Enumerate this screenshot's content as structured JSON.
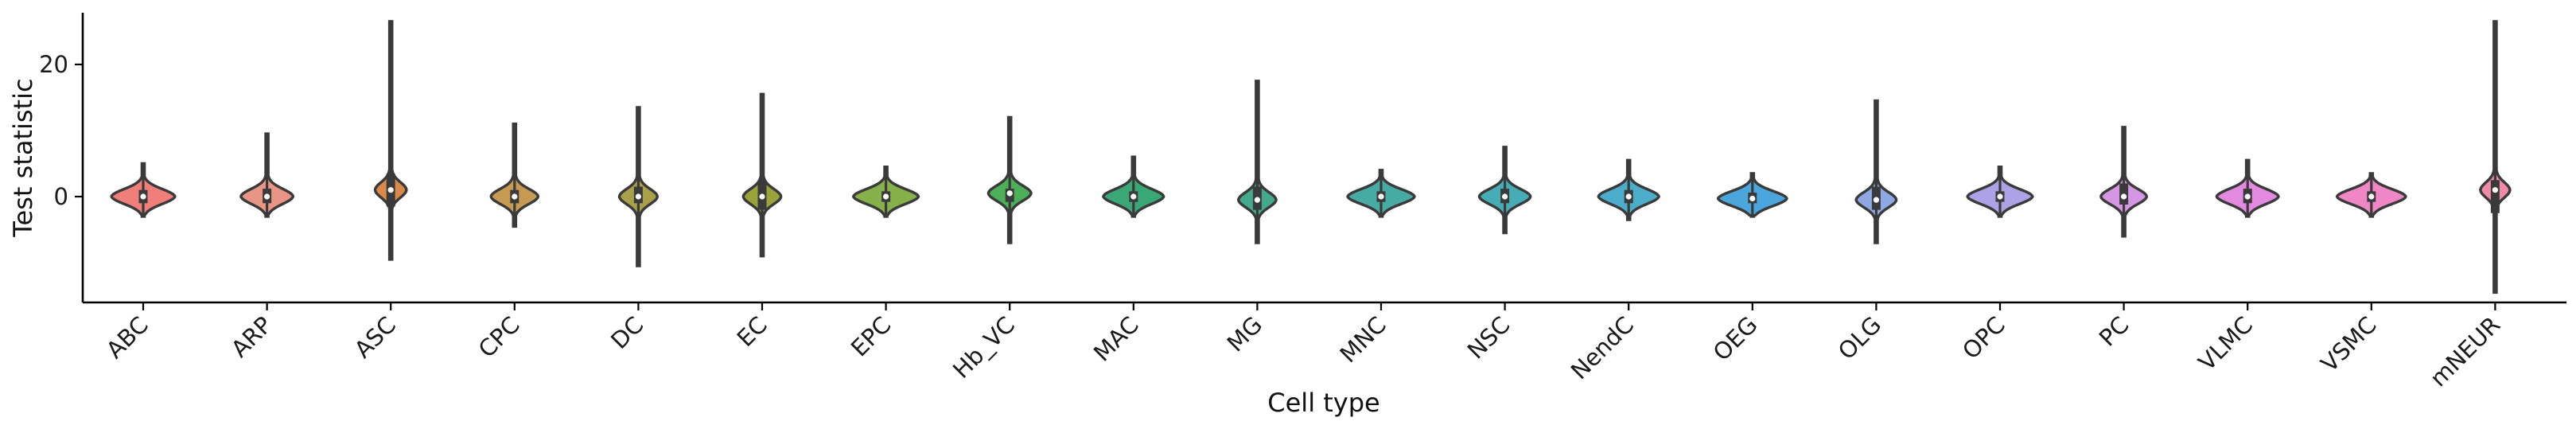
{
  "chart_data": {
    "type": "violin",
    "xlabel": "Cell type",
    "ylabel": "Test statistic",
    "ylim": [
      -10,
      28
    ],
    "yticks": [
      0,
      20
    ],
    "grid": false,
    "categories": [
      "ABC",
      "ARP",
      "ASC",
      "CPC",
      "DC",
      "EC",
      "EPC",
      "Hb_VC",
      "MAC",
      "MG",
      "MNC",
      "NSC",
      "NendC",
      "OEG",
      "OLG",
      "OPC",
      "PC",
      "VLMC",
      "VSMC",
      "mNEUR"
    ],
    "colors": [
      "#f07f7a",
      "#e99585",
      "#d9894a",
      "#c69a53",
      "#a8a04a",
      "#9aa33a",
      "#86b04a",
      "#4daf58",
      "#3aa876",
      "#44a98d",
      "#45aba3",
      "#46adb6",
      "#4badc9",
      "#4aa6dc",
      "#8ea8e4",
      "#ada2e6",
      "#d597e4",
      "#e38ae0",
      "#ef86c6",
      "#f08aa8"
    ],
    "series": [
      {
        "category": "ABC",
        "min": -3.0,
        "max": 5.0,
        "median": 0.0,
        "q1": -1.0,
        "q3": 1.0
      },
      {
        "category": "ARP",
        "min": -3.0,
        "max": 9.5,
        "median": 0.0,
        "q1": -1.0,
        "q3": 1.2
      },
      {
        "category": "ASC",
        "min": -9.5,
        "max": 26.5,
        "median": 1.0,
        "q1": -1.5,
        "q3": 3.5
      },
      {
        "category": "CPC",
        "min": -4.5,
        "max": 11.0,
        "median": 0.0,
        "q1": -1.0,
        "q3": 1.0
      },
      {
        "category": "DC",
        "min": -10.5,
        "max": 13.5,
        "median": 0.0,
        "q1": -1.0,
        "q3": 1.5
      },
      {
        "category": "EC",
        "min": -9.0,
        "max": 15.5,
        "median": 0.0,
        "q1": -2.0,
        "q3": 2.5
      },
      {
        "category": "EPC",
        "min": -3.0,
        "max": 4.5,
        "median": 0.0,
        "q1": -0.8,
        "q3": 0.8
      },
      {
        "category": "Hb_VC",
        "min": -7.0,
        "max": 12.0,
        "median": 0.5,
        "q1": -0.8,
        "q3": 1.2
      },
      {
        "category": "MAC",
        "min": -3.0,
        "max": 6.0,
        "median": 0.0,
        "q1": -0.8,
        "q3": 0.8
      },
      {
        "category": "MG",
        "min": -7.0,
        "max": 17.5,
        "median": -0.5,
        "q1": -2.0,
        "q3": 1.5
      },
      {
        "category": "MNC",
        "min": -3.0,
        "max": 4.0,
        "median": 0.0,
        "q1": -0.8,
        "q3": 0.8
      },
      {
        "category": "NSC",
        "min": -5.5,
        "max": 7.5,
        "median": 0.0,
        "q1": -1.0,
        "q3": 1.2
      },
      {
        "category": "NendC",
        "min": -3.5,
        "max": 5.5,
        "median": 0.0,
        "q1": -1.0,
        "q3": 1.0
      },
      {
        "category": "OEG",
        "min": -3.0,
        "max": 3.5,
        "median": -0.3,
        "q1": -1.0,
        "q3": 0.6
      },
      {
        "category": "OLG",
        "min": -7.0,
        "max": 14.5,
        "median": -0.5,
        "q1": -2.0,
        "q3": 1.5
      },
      {
        "category": "OPC",
        "min": -3.0,
        "max": 4.5,
        "median": 0.0,
        "q1": -0.8,
        "q3": 0.8
      },
      {
        "category": "PC",
        "min": -6.0,
        "max": 10.5,
        "median": 0.0,
        "q1": -1.2,
        "q3": 2.0
      },
      {
        "category": "VLMC",
        "min": -3.0,
        "max": 5.5,
        "median": 0.0,
        "q1": -1.0,
        "q3": 1.2
      },
      {
        "category": "VSMC",
        "min": -3.0,
        "max": 3.5,
        "median": 0.0,
        "q1": -0.8,
        "q3": 0.8
      },
      {
        "category": "mNEUR",
        "min": -14.5,
        "max": 26.5,
        "median": 1.0,
        "q1": -2.5,
        "q3": 2.5
      }
    ]
  }
}
